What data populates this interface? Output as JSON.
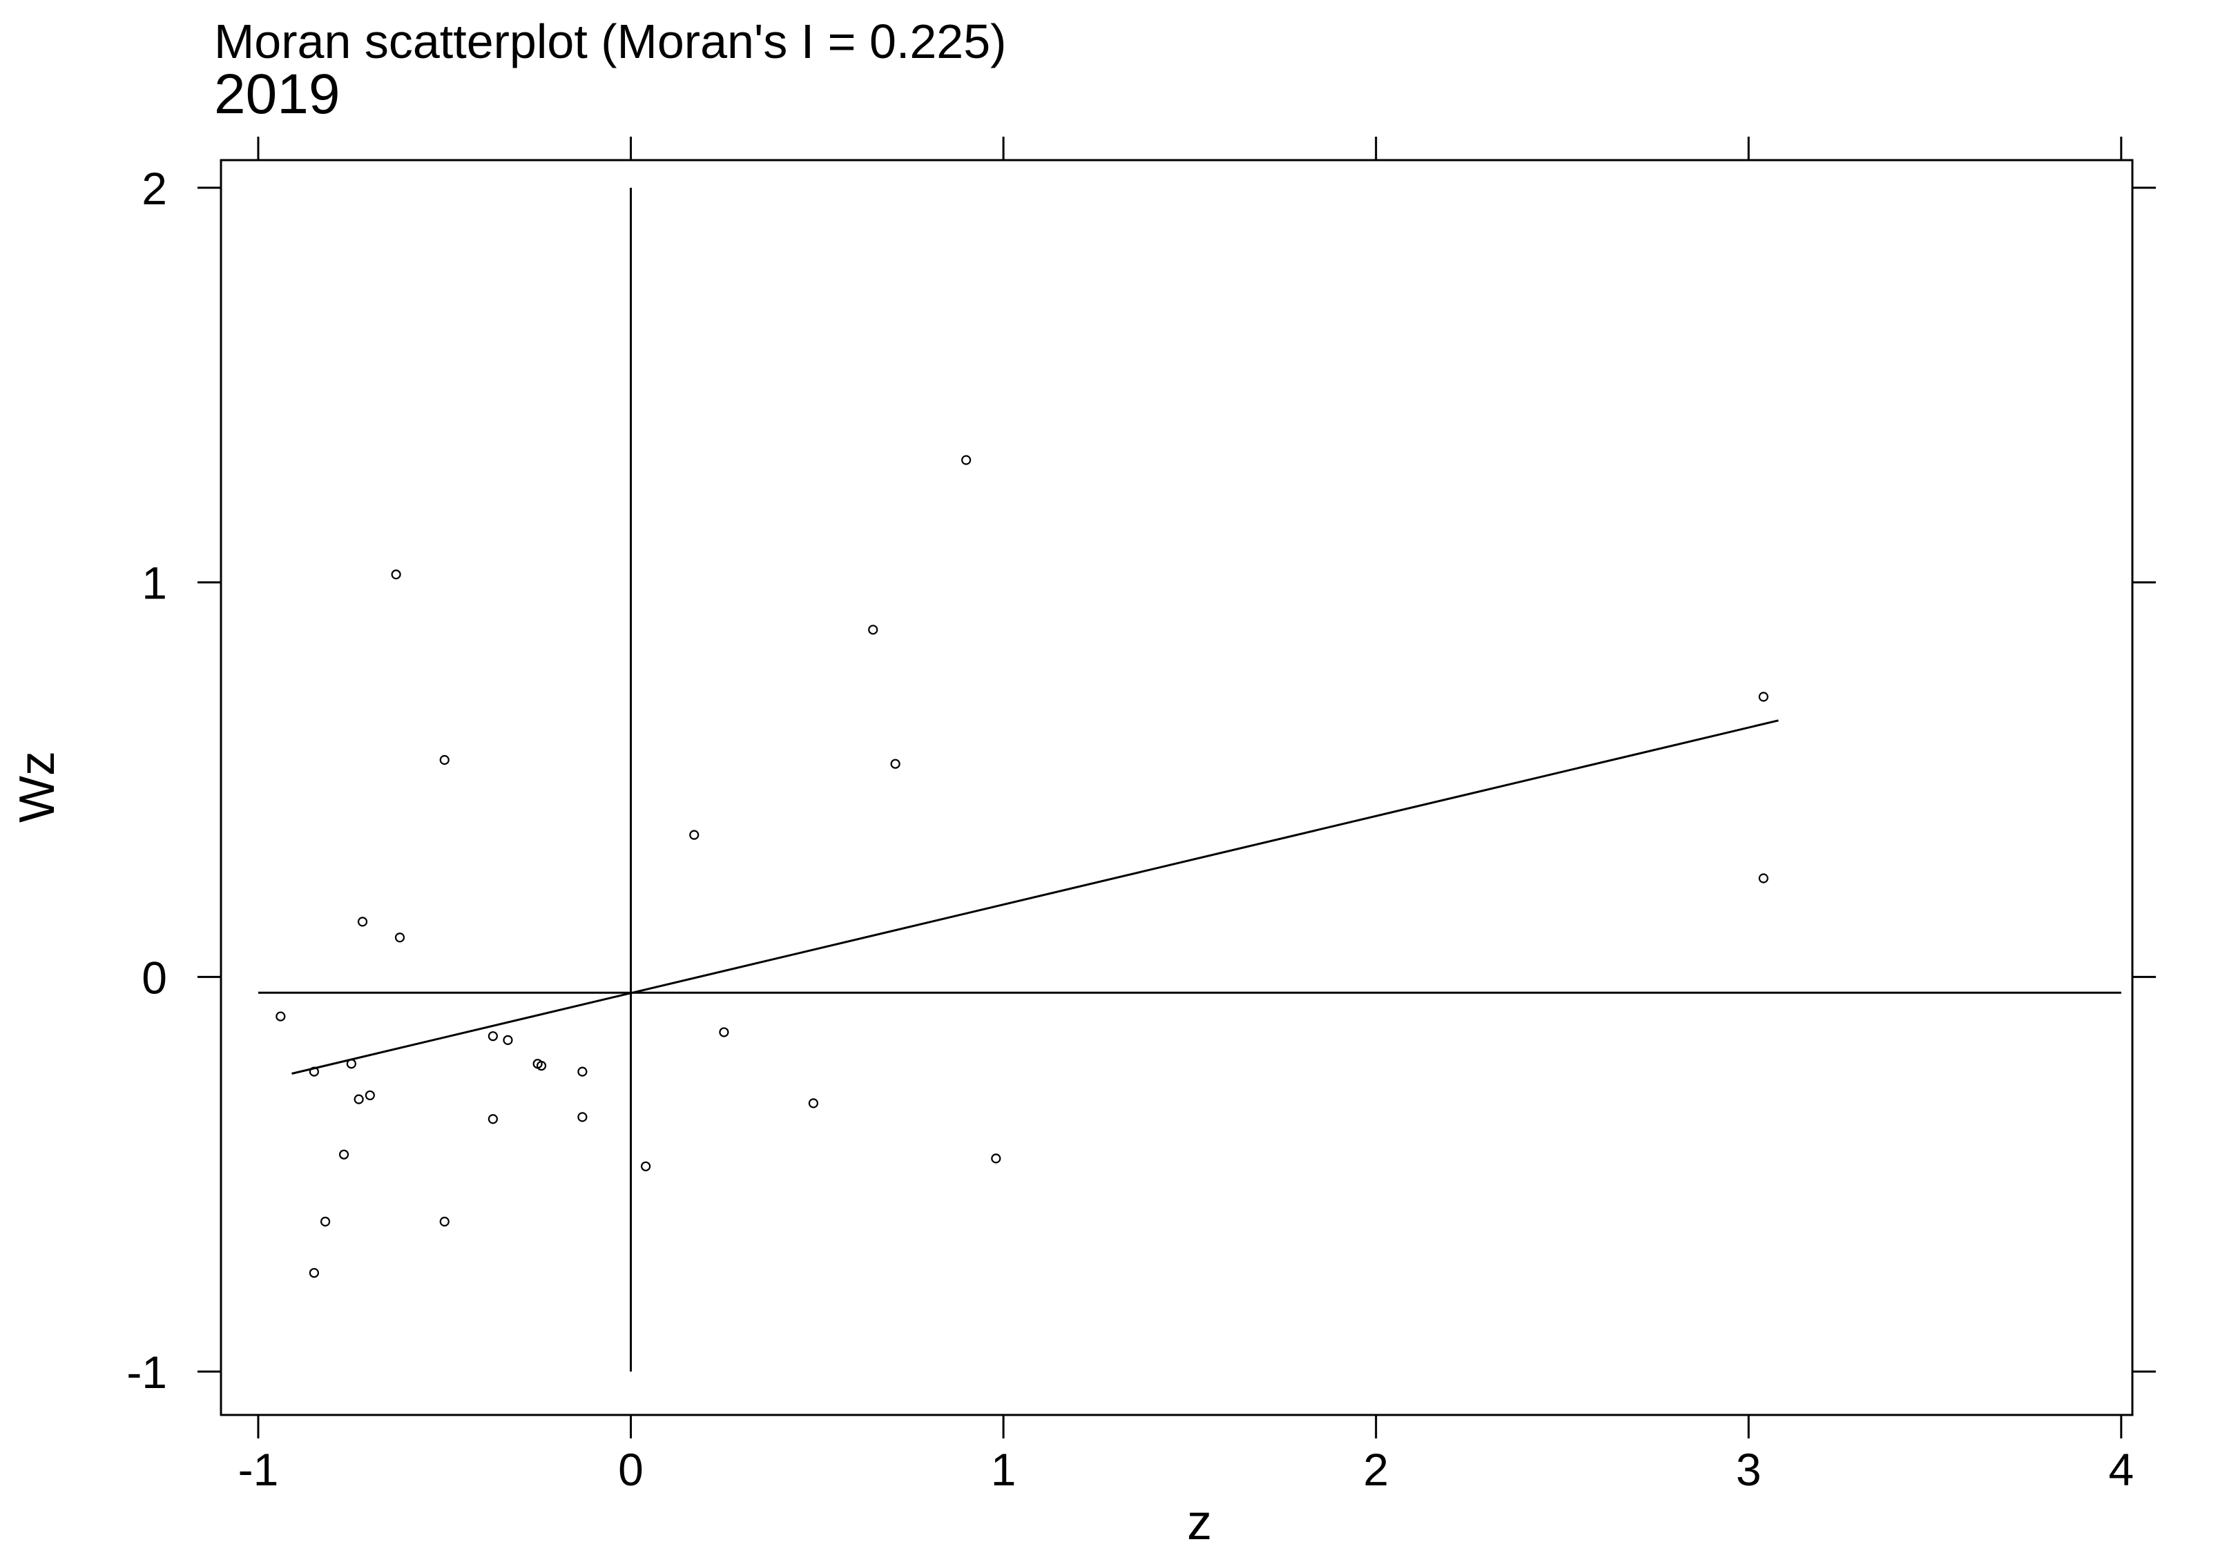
{
  "chart_data": {
    "type": "scatter",
    "title": "Moran scatterplot (Moran's I = 0.225)",
    "subtitle": "2019",
    "xlabel": "z",
    "ylabel": "Wz",
    "xlim": [
      -1.1,
      4.03
    ],
    "ylim": [
      -1.11,
      2.07
    ],
    "x_ticks": [
      -1,
      0,
      1,
      2,
      3,
      4
    ],
    "y_ticks": [
      -1,
      0,
      1,
      2
    ],
    "x_tick_labels": [
      "-1",
      "0",
      "1",
      "2",
      "3",
      "4"
    ],
    "y_tick_labels": [
      "-1",
      "0",
      "1",
      "2"
    ],
    "grid": false,
    "reference_lines": {
      "horizontal_at_y": -0.04,
      "vertical_at_x": 0,
      "horizontal_x_range": [
        -1,
        4
      ],
      "vertical_y_range": [
        -1,
        2
      ]
    },
    "regression_line": {
      "x": [
        -0.91,
        3.08
      ],
      "y": [
        -0.245,
        0.65
      ]
    },
    "points": [
      {
        "x": -0.94,
        "y": -0.1
      },
      {
        "x": -0.85,
        "y": -0.24
      },
      {
        "x": -0.85,
        "y": -0.75
      },
      {
        "x": -0.82,
        "y": -0.62
      },
      {
        "x": -0.77,
        "y": -0.45
      },
      {
        "x": -0.75,
        "y": -0.22
      },
      {
        "x": -0.73,
        "y": -0.31
      },
      {
        "x": -0.72,
        "y": 0.14
      },
      {
        "x": -0.7,
        "y": -0.3
      },
      {
        "x": -0.63,
        "y": 1.02
      },
      {
        "x": -0.62,
        "y": 0.1
      },
      {
        "x": -0.5,
        "y": 0.55
      },
      {
        "x": -0.5,
        "y": -0.62
      },
      {
        "x": -0.37,
        "y": -0.15
      },
      {
        "x": -0.37,
        "y": -0.36
      },
      {
        "x": -0.33,
        "y": -0.16
      },
      {
        "x": -0.25,
        "y": -0.22
      },
      {
        "x": -0.24,
        "y": -0.225
      },
      {
        "x": -0.13,
        "y": -0.24
      },
      {
        "x": -0.13,
        "y": -0.355
      },
      {
        "x": 0.04,
        "y": -0.48
      },
      {
        "x": 0.17,
        "y": 0.36
      },
      {
        "x": 0.25,
        "y": -0.14
      },
      {
        "x": 0.49,
        "y": -0.32
      },
      {
        "x": 0.65,
        "y": 0.88
      },
      {
        "x": 0.71,
        "y": 0.54
      },
      {
        "x": 0.9,
        "y": 1.31
      },
      {
        "x": 0.98,
        "y": -0.46
      },
      {
        "x": 3.04,
        "y": 0.71
      },
      {
        "x": 3.04,
        "y": 0.25
      }
    ]
  }
}
